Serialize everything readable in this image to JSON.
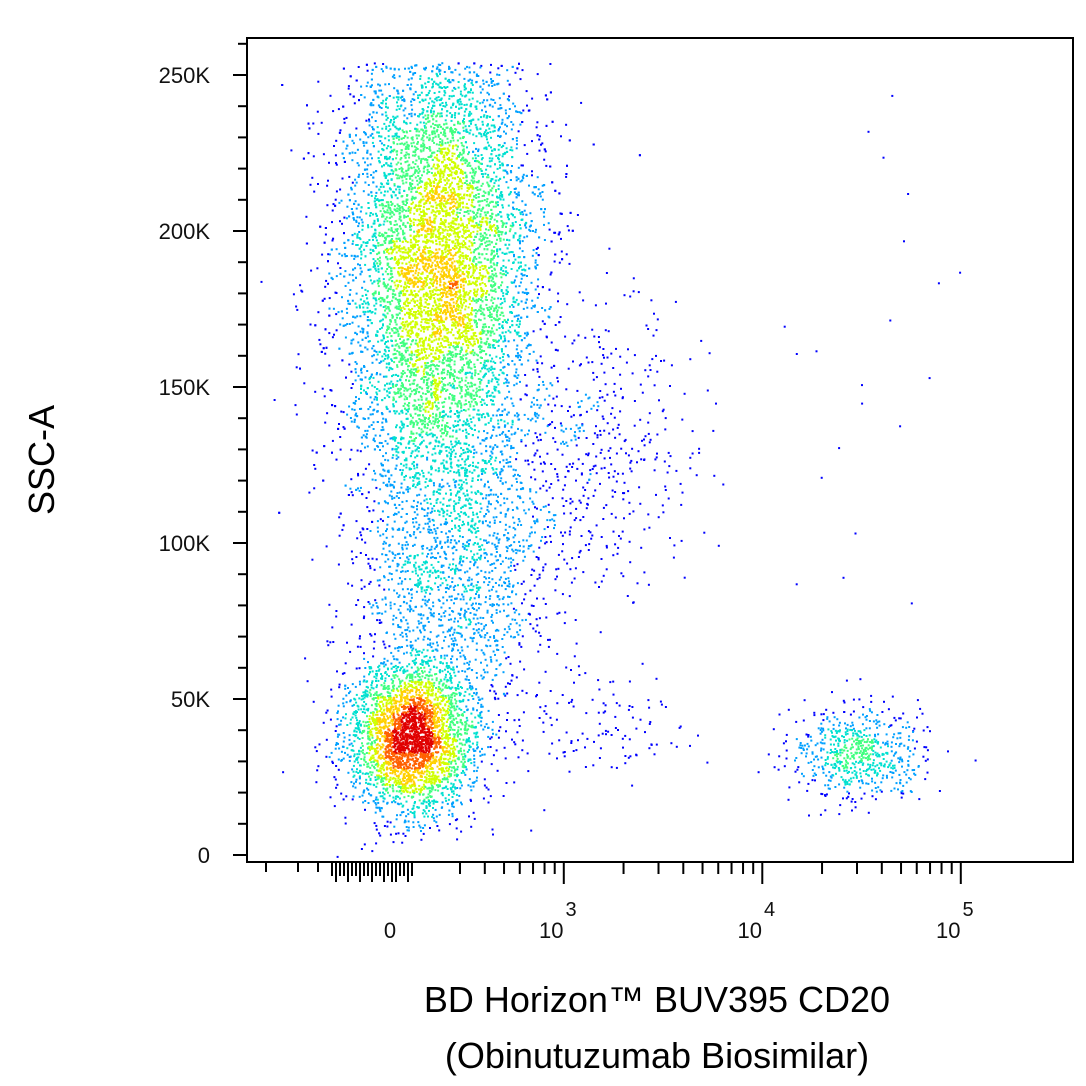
{
  "chart_data": {
    "type": "scatter",
    "style": "density-colored flow cytometry dot plot",
    "xlabel_lines": [
      "BD Horizon™ BUV395 CD20",
      "(Obinutuzumab Biosimilar)"
    ],
    "ylabel": "SSC-A",
    "x_scale": "biexponential",
    "y_scale": "linear",
    "xlim": [
      -300,
      150000
    ],
    "ylim": [
      -2000,
      262000
    ],
    "x_ticks": [
      {
        "value": 0,
        "base": "0",
        "exp": ""
      },
      {
        "value": 1000,
        "base": "10",
        "exp": "3"
      },
      {
        "value": 10000,
        "base": "10",
        "exp": "4"
      },
      {
        "value": 100000,
        "base": "10",
        "exp": "5"
      }
    ],
    "y_ticks": [
      {
        "value": 0,
        "label": "0"
      },
      {
        "value": 50000,
        "label": "50K"
      },
      {
        "value": 100000,
        "label": "100K"
      },
      {
        "value": 150000,
        "label": "150K"
      },
      {
        "value": 200000,
        "label": "200K"
      },
      {
        "value": 250000,
        "label": "250K"
      }
    ],
    "grid": false,
    "density_colors": [
      "#0000ff",
      "#00a0ff",
      "#00e0d0",
      "#40ff80",
      "#d0ff00",
      "#ffd000",
      "#ff6000",
      "#e00000"
    ],
    "populations": [
      {
        "name": "",
        "x_center": 200,
        "y_center": 190000,
        "x_spread": 180,
        "y_spread": 38000,
        "count": 9000
      },
      {
        "name": "",
        "x_center": 80,
        "y_center": 38000,
        "x_spread": 120,
        "y_spread": 12000,
        "count": 3200
      },
      {
        "name": "",
        "x_center": 260,
        "y_center": 90000,
        "x_spread": 200,
        "y_spread": 30000,
        "count": 1800
      },
      {
        "name": "",
        "x_center": 1500,
        "y_center": 130000,
        "x_spread": 1000,
        "y_spread": 22000,
        "count": 450
      },
      {
        "name": "",
        "x_center": 1500,
        "y_center": 42000,
        "x_spread": 900,
        "y_spread": 9000,
        "count": 110
      },
      {
        "name": "",
        "x_center": 30000,
        "y_center": 33000,
        "x_spread": 12000,
        "y_spread": 7000,
        "count": 650
      },
      {
        "name": "",
        "x_center": 30000,
        "y_center": 150000,
        "x_spread": 18000,
        "y_spread": 45000,
        "count": 22
      }
    ]
  }
}
